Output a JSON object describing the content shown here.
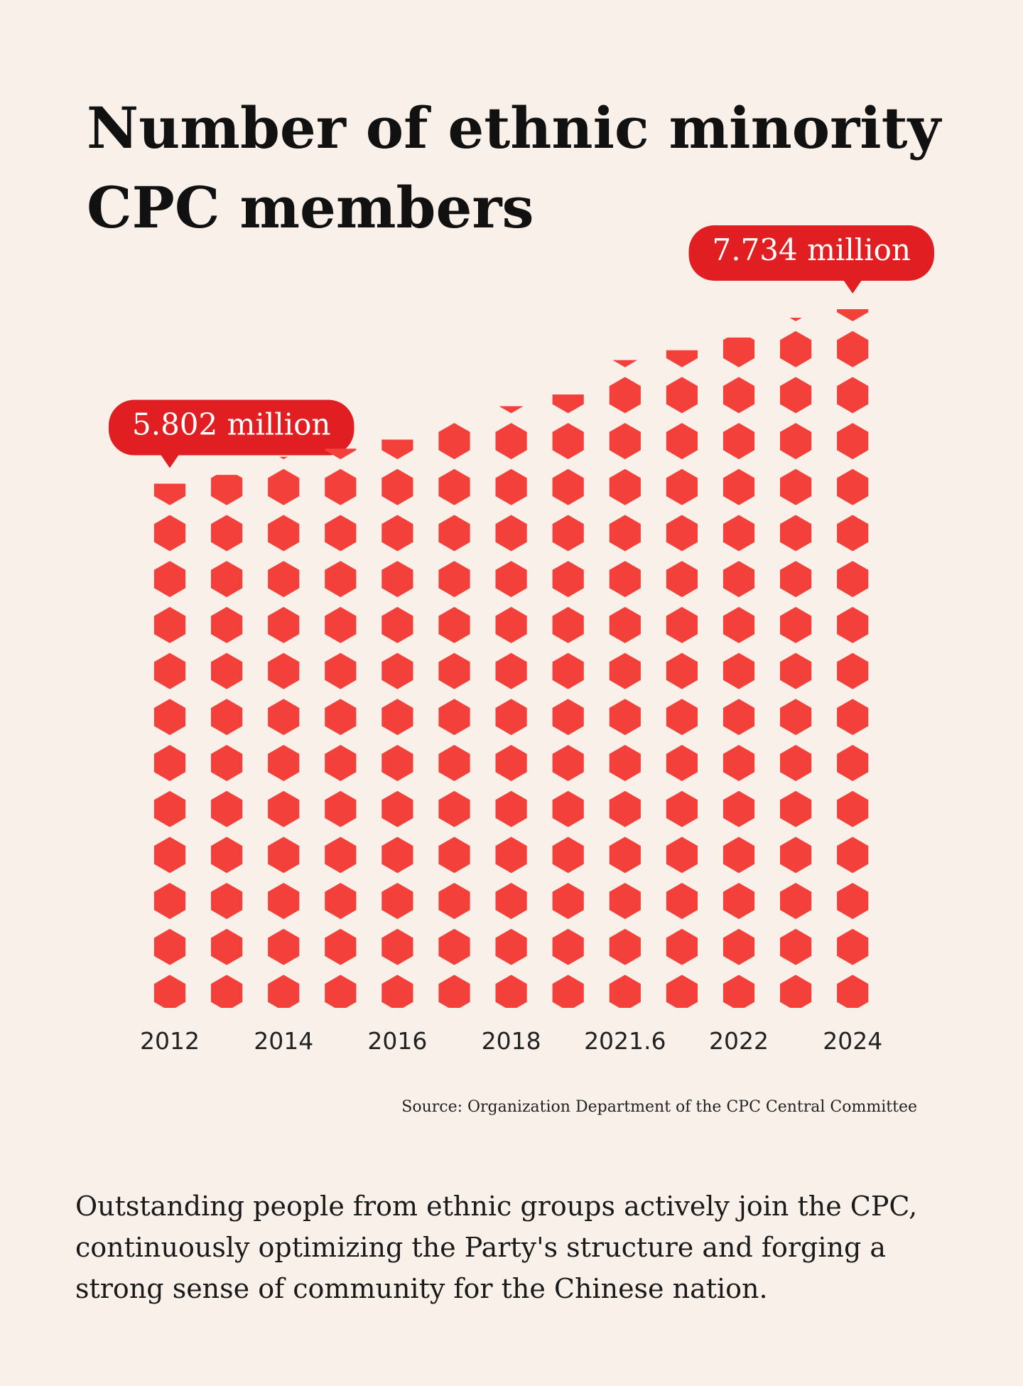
{
  "chart_data": {
    "type": "pictograph",
    "title": "Number of ethnic minority CPC members",
    "categories": [
      "2012",
      null,
      "2014",
      null,
      "2016",
      null,
      "2018",
      null,
      "2021.6",
      null,
      "2022",
      null,
      "2024"
    ],
    "values": [
      5.802,
      5.9,
      6.1,
      6.19,
      6.29,
      6.57,
      6.66,
      6.79,
      7.17,
      7.28,
      7.42,
      7.64,
      7.734
    ],
    "value_labels": [
      "5.802 million",
      null,
      null,
      null,
      null,
      null,
      null,
      null,
      null,
      null,
      null,
      null,
      "7.734 million"
    ],
    "color": "#f4403a",
    "label_color": "#e11f22",
    "source": "Source: Organization Department of the CPC Central Committee"
  },
  "description": [
    "Outstanding people from ethnic groups actively join the CPC,",
    "continuously optimizing the Party's structure and forging a",
    "strong sense of community for the Chinese nation."
  ]
}
